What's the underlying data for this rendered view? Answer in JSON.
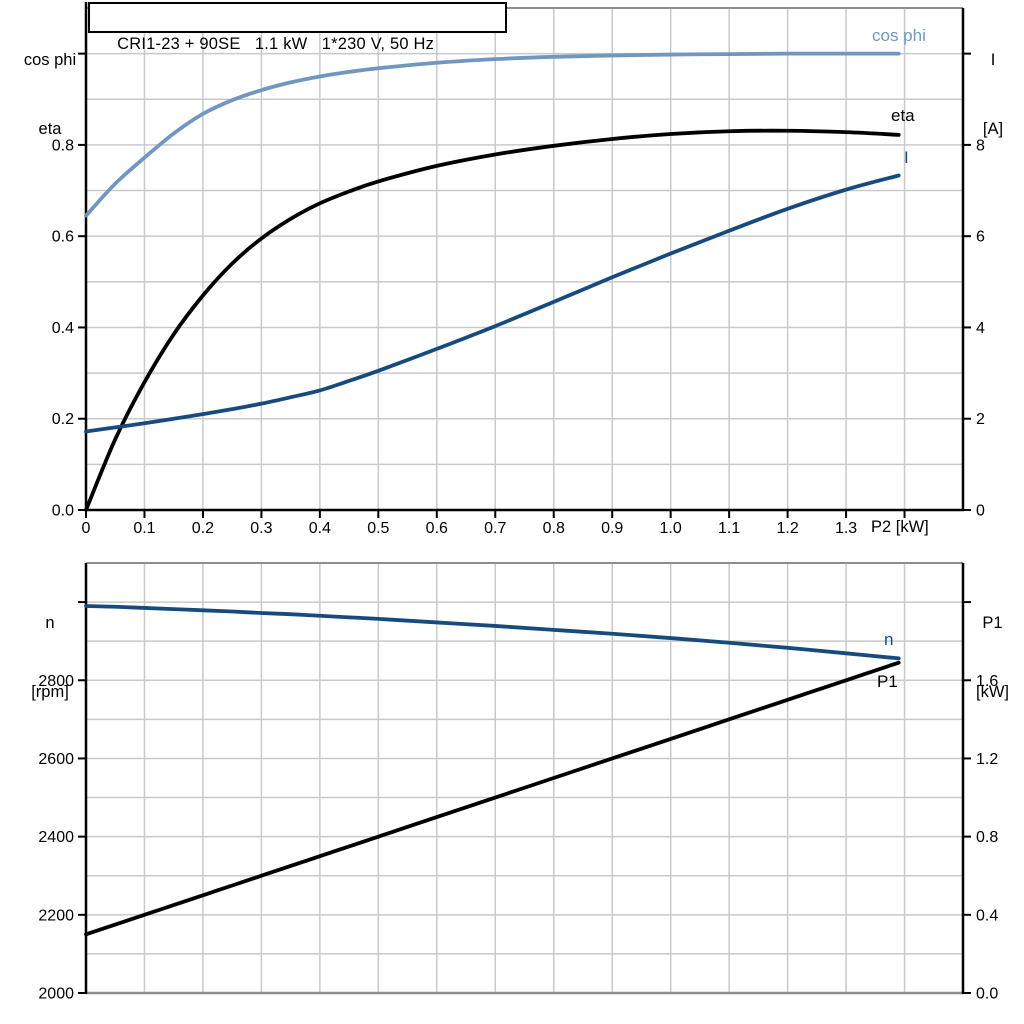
{
  "title": "CRI1-23 + 90SE   1.1 kW   1*230 V, 50 Hz",
  "colors": {
    "light_blue": "#7197c1",
    "dark_blue": "#174b7e",
    "black": "#000000",
    "grid": "#c9c9c9",
    "border_gray": "#8e8e8e",
    "axis_black": "#000000",
    "background": "#ffffff"
  },
  "chart_data": [
    {
      "type": "line",
      "title": "CRI1-23 + 90SE   1.1 kW   1*230 V, 50 Hz",
      "x_axis": {
        "label": "P2 [kW]",
        "range": [
          0,
          1.5
        ],
        "grid_step": 0.1,
        "tick_values": [
          0,
          0.1,
          0.2,
          0.3,
          0.4,
          0.5,
          0.6,
          0.7,
          0.8,
          0.9,
          1.0,
          1.1,
          1.2,
          1.3,
          1.4
        ],
        "tick_labels": [
          "0",
          "0.1",
          "0.2",
          "0.3",
          "0.4",
          "0.5",
          "0.6",
          "0.7",
          "0.8",
          "0.9",
          "1.0",
          "1.1",
          "1.2",
          "1.3",
          ""
        ]
      },
      "y_left": {
        "title_lines": [
          "cos phi",
          "eta"
        ],
        "range": [
          0,
          1.1
        ],
        "grid_step": 0.1,
        "tick_values": [
          0,
          0.2,
          0.4,
          0.6,
          0.8,
          1.0
        ],
        "tick_labels": [
          "0.0",
          "0.2",
          "0.4",
          "0.6",
          "0.8",
          ""
        ]
      },
      "y_right": {
        "title_lines": [
          "I",
          "[A]"
        ],
        "range": [
          0,
          11
        ],
        "tick_values": [
          0,
          2,
          4,
          6,
          8,
          10
        ],
        "tick_labels": [
          "0",
          "2",
          "4",
          "6",
          "8",
          ""
        ]
      },
      "series": [
        {
          "name": "cos phi",
          "axis": "left",
          "color_key": "light_blue",
          "x": [
            0,
            0.05,
            0.1,
            0.15,
            0.2,
            0.25,
            0.3,
            0.35,
            0.4,
            0.45,
            0.5,
            0.6,
            0.7,
            0.8,
            0.9,
            1.0,
            1.1,
            1.2,
            1.3,
            1.39
          ],
          "y": [
            0.645,
            0.715,
            0.772,
            0.825,
            0.868,
            0.898,
            0.92,
            0.937,
            0.95,
            0.96,
            0.968,
            0.98,
            0.988,
            0.993,
            0.996,
            0.998,
            0.999,
            1.0,
            1.0,
            1.0
          ]
        },
        {
          "name": "eta",
          "axis": "left",
          "color_key": "black",
          "x": [
            0,
            0.05,
            0.1,
            0.15,
            0.2,
            0.25,
            0.3,
            0.35,
            0.4,
            0.45,
            0.5,
            0.6,
            0.7,
            0.8,
            0.9,
            1.0,
            1.1,
            1.2,
            1.3,
            1.39
          ],
          "y": [
            0,
            0.155,
            0.28,
            0.385,
            0.47,
            0.54,
            0.595,
            0.638,
            0.672,
            0.698,
            0.72,
            0.754,
            0.779,
            0.798,
            0.813,
            0.824,
            0.83,
            0.831,
            0.828,
            0.822
          ]
        },
        {
          "name": "I",
          "axis": "right",
          "color_key": "dark_blue",
          "x": [
            0,
            0.05,
            0.1,
            0.15,
            0.2,
            0.25,
            0.3,
            0.35,
            0.4,
            0.45,
            0.5,
            0.6,
            0.7,
            0.8,
            0.9,
            1.0,
            1.1,
            1.2,
            1.3,
            1.39
          ],
          "y": [
            1.72,
            1.81,
            1.9,
            2.0,
            2.1,
            2.21,
            2.33,
            2.47,
            2.62,
            2.83,
            3.05,
            3.53,
            4.03,
            4.56,
            5.1,
            5.62,
            6.12,
            6.6,
            7.02,
            7.33
          ]
        }
      ]
    },
    {
      "type": "line",
      "x_axis": {
        "label": "",
        "range": [
          0,
          1.5
        ],
        "grid_step": 0.1,
        "tick_values": [],
        "tick_labels": []
      },
      "y_left": {
        "title_lines": [
          "n",
          "[rpm]"
        ],
        "range": [
          2000,
          3100
        ],
        "grid_step": 100,
        "tick_values": [
          2000,
          2200,
          2400,
          2600,
          2800,
          3000
        ],
        "tick_labels": [
          "2000",
          "2200",
          "2400",
          "2600",
          "2800",
          ""
        ]
      },
      "y_right": {
        "title_lines": [
          "P1",
          "[kW]"
        ],
        "range": [
          0,
          2.2
        ],
        "tick_values": [
          0,
          0.4,
          0.8,
          1.2,
          1.6,
          2.0
        ],
        "tick_labels": [
          "0.0",
          "0.4",
          "0.8",
          "1.2",
          "1.6",
          ""
        ]
      },
      "series": [
        {
          "name": "n",
          "axis": "left",
          "color_key": "dark_blue",
          "x": [
            0,
            0.05,
            0.1,
            0.15,
            0.2,
            0.25,
            0.3,
            0.35,
            0.4,
            0.45,
            0.5,
            0.6,
            0.7,
            0.8,
            0.9,
            1.0,
            1.1,
            1.2,
            1.3,
            1.39
          ],
          "y": [
            2990,
            2988,
            2985,
            2982,
            2979,
            2976,
            2972,
            2969,
            2965,
            2961,
            2957,
            2948,
            2939,
            2929,
            2919,
            2908,
            2896,
            2883,
            2869,
            2856
          ]
        },
        {
          "name": "P1",
          "axis": "right",
          "color_key": "black",
          "x": [
            0,
            0.05,
            0.1,
            0.15,
            0.2,
            0.25,
            0.3,
            0.35,
            0.4,
            0.45,
            0.5,
            0.6,
            0.7,
            0.8,
            0.9,
            1.0,
            1.1,
            1.2,
            1.3,
            1.39
          ],
          "y": [
            0.3,
            0.35,
            0.4,
            0.45,
            0.5,
            0.55,
            0.6,
            0.65,
            0.7,
            0.75,
            0.8,
            0.9,
            1.0,
            1.1,
            1.2,
            1.3,
            1.4,
            1.5,
            1.6,
            1.69
          ]
        }
      ]
    }
  ]
}
